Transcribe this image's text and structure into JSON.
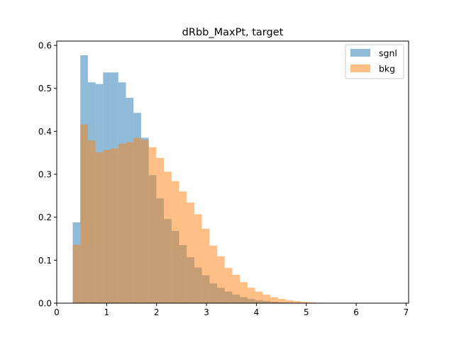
{
  "chart_data": {
    "type": "bar",
    "title": "dRbb_MaxPt, target",
    "xlabel": "",
    "ylabel": "",
    "xlim": [
      0,
      7.05
    ],
    "ylim": [
      0,
      0.61
    ],
    "xticks": [
      0,
      1,
      2,
      3,
      4,
      5,
      6,
      7
    ],
    "yticks": [
      0.0,
      0.1,
      0.2,
      0.3,
      0.4,
      0.5,
      0.6
    ],
    "xtick_labels": [
      "0",
      "1",
      "2",
      "3",
      "4",
      "5",
      "6",
      "7"
    ],
    "ytick_labels": [
      "0.0",
      "0.1",
      "0.2",
      "0.3",
      "0.4",
      "0.5",
      "0.6"
    ],
    "bin_start": 0.32,
    "bin_width": 0.1523,
    "grid": false,
    "legend_position": "top-right",
    "series": [
      {
        "name": "sgnl",
        "color": "#1f77b4",
        "alpha": 0.5,
        "values": [
          0.188,
          0.577,
          0.514,
          0.51,
          0.537,
          0.537,
          0.514,
          0.478,
          0.443,
          0.385,
          0.298,
          0.244,
          0.196,
          0.168,
          0.135,
          0.107,
          0.083,
          0.065,
          0.046,
          0.036,
          0.027,
          0.02,
          0.014,
          0.01,
          0.007,
          0.005,
          0.003,
          0.002,
          0.0015,
          0.001,
          0.0006,
          0.0004,
          0.0003,
          0.0002,
          0.0001,
          0.0001,
          0.0001,
          0.0
        ]
      },
      {
        "name": "bkg",
        "color": "#ff7f0e",
        "alpha": 0.5,
        "values": [
          0.136,
          0.416,
          0.379,
          0.351,
          0.357,
          0.36,
          0.371,
          0.375,
          0.385,
          0.38,
          0.363,
          0.338,
          0.306,
          0.284,
          0.26,
          0.234,
          0.207,
          0.173,
          0.134,
          0.109,
          0.082,
          0.066,
          0.049,
          0.036,
          0.027,
          0.02,
          0.014,
          0.01,
          0.007,
          0.005,
          0.003,
          0.002,
          0.001,
          0.0005,
          0.0003,
          0.0002,
          0.0001,
          0.0
        ]
      }
    ]
  }
}
